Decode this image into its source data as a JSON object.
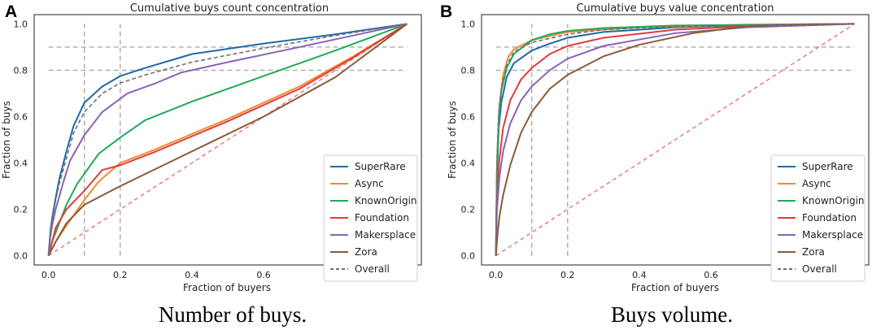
{
  "chart_data": [
    {
      "type": "line",
      "panel_letter": "A",
      "title": "Cumulative buys count concentration",
      "xlabel": "Fraction of buyers",
      "ylabel": "Fraction of buys",
      "caption": "Number of buys.",
      "xlim": [
        -0.04,
        1.04
      ],
      "ylim": [
        -0.04,
        1.04
      ],
      "xticks": [
        "0.0",
        "0.2",
        "0.4",
        "0.6",
        "0.8",
        "1.0"
      ],
      "yticks": [
        "0.0",
        "0.2",
        "0.4",
        "0.6",
        "0.8",
        "1.0"
      ],
      "grid": false,
      "legend_position": "lower-right",
      "reference_lines": {
        "vertical": [
          0.1,
          0.2
        ],
        "horizontal": [
          0.8,
          0.9
        ]
      },
      "series": [
        {
          "name": "SuperRare",
          "color": "#1f6aa5",
          "style": "solid",
          "points": [
            [
              0,
              0
            ],
            [
              0.005,
              0.1
            ],
            [
              0.01,
              0.16
            ],
            [
              0.02,
              0.25
            ],
            [
              0.03,
              0.33
            ],
            [
              0.05,
              0.45
            ],
            [
              0.07,
              0.56
            ],
            [
              0.1,
              0.66
            ],
            [
              0.15,
              0.73
            ],
            [
              0.2,
              0.775
            ],
            [
              0.27,
              0.81
            ],
            [
              0.4,
              0.87
            ],
            [
              0.6,
              0.915
            ],
            [
              0.8,
              0.955
            ],
            [
              1,
              1
            ]
          ]
        },
        {
          "name": "Async",
          "color": "#f28a2e",
          "style": "solid",
          "points": [
            [
              0,
              0
            ],
            [
              0.02,
              0.06
            ],
            [
              0.05,
              0.13
            ],
            [
              0.1,
              0.24
            ],
            [
              0.14,
              0.32
            ],
            [
              0.2,
              0.4
            ],
            [
              0.3,
              0.46
            ],
            [
              0.5,
              0.59
            ],
            [
              0.7,
              0.73
            ],
            [
              0.85,
              0.86
            ],
            [
              1,
              1
            ]
          ]
        },
        {
          "name": "KnownOrigin",
          "color": "#1faa5a",
          "style": "solid",
          "points": [
            [
              0,
              0
            ],
            [
              0.01,
              0.06
            ],
            [
              0.03,
              0.14
            ],
            [
              0.05,
              0.22
            ],
            [
              0.08,
              0.31
            ],
            [
              0.14,
              0.44
            ],
            [
              0.2,
              0.51
            ],
            [
              0.27,
              0.585
            ],
            [
              0.4,
              0.665
            ],
            [
              0.6,
              0.775
            ],
            [
              0.8,
              0.885
            ],
            [
              1,
              1
            ]
          ]
        },
        {
          "name": "Foundation",
          "color": "#e03b3b",
          "style": "solid",
          "points": [
            [
              0,
              0
            ],
            [
              0.02,
              0.12
            ],
            [
              0.05,
              0.2
            ],
            [
              0.1,
              0.28
            ],
            [
              0.15,
              0.37
            ],
            [
              0.2,
              0.39
            ],
            [
              0.3,
              0.45
            ],
            [
              0.5,
              0.58
            ],
            [
              0.7,
              0.72
            ],
            [
              0.85,
              0.855
            ],
            [
              1,
              1
            ]
          ]
        },
        {
          "name": "Makersplace",
          "color": "#8b62b8",
          "style": "solid",
          "points": [
            [
              0,
              0
            ],
            [
              0.005,
              0.08
            ],
            [
              0.01,
              0.13
            ],
            [
              0.02,
              0.2
            ],
            [
              0.04,
              0.31
            ],
            [
              0.06,
              0.41
            ],
            [
              0.1,
              0.52
            ],
            [
              0.15,
              0.62
            ],
            [
              0.22,
              0.7
            ],
            [
              0.3,
              0.745
            ],
            [
              0.37,
              0.79
            ],
            [
              0.5,
              0.835
            ],
            [
              0.7,
              0.9
            ],
            [
              0.85,
              0.95
            ],
            [
              1,
              1
            ]
          ]
        },
        {
          "name": "Zora",
          "color": "#8b5a38",
          "style": "solid",
          "points": [
            [
              0,
              0
            ],
            [
              0.02,
              0.06
            ],
            [
              0.05,
              0.14
            ],
            [
              0.1,
              0.22
            ],
            [
              0.2,
              0.3
            ],
            [
              0.4,
              0.45
            ],
            [
              0.6,
              0.6
            ],
            [
              0.8,
              0.77
            ],
            [
              1,
              1
            ]
          ]
        },
        {
          "name": "Overall",
          "color": "#707070",
          "style": "dashed",
          "points": [
            [
              0,
              0
            ],
            [
              0.005,
              0.09
            ],
            [
              0.01,
              0.15
            ],
            [
              0.02,
              0.24
            ],
            [
              0.03,
              0.31
            ],
            [
              0.05,
              0.42
            ],
            [
              0.07,
              0.53
            ],
            [
              0.1,
              0.62
            ],
            [
              0.15,
              0.7
            ],
            [
              0.2,
              0.745
            ],
            [
              0.27,
              0.78
            ],
            [
              0.4,
              0.835
            ],
            [
              0.6,
              0.895
            ],
            [
              0.8,
              0.95
            ],
            [
              1,
              1
            ]
          ]
        }
      ],
      "diagonal": {
        "color": "#f07070",
        "style": "dashed",
        "points": [
          [
            0,
            0
          ],
          [
            1,
            1
          ]
        ]
      }
    },
    {
      "type": "line",
      "panel_letter": "B",
      "title": "Cumulative buys value concentration",
      "xlabel": "Fraction of buyers",
      "ylabel": "Fraction of buys",
      "caption": "Buys volume.",
      "xlim": [
        -0.04,
        1.04
      ],
      "ylim": [
        -0.04,
        1.04
      ],
      "xticks": [
        "0.0",
        "0.2",
        "0.4",
        "0.6",
        "0.8",
        "1.0"
      ],
      "yticks": [
        "0.0",
        "0.2",
        "0.4",
        "0.6",
        "0.8",
        "1.0"
      ],
      "grid": false,
      "legend_position": "lower-right",
      "reference_lines": {
        "vertical": [
          0.1,
          0.2
        ],
        "horizontal": [
          0.8,
          0.9
        ]
      },
      "series": [
        {
          "name": "SuperRare",
          "color": "#1f6aa5",
          "style": "solid",
          "points": [
            [
              0,
              0
            ],
            [
              0.003,
              0.35
            ],
            [
              0.008,
              0.55
            ],
            [
              0.015,
              0.66
            ],
            [
              0.03,
              0.77
            ],
            [
              0.05,
              0.83
            ],
            [
              0.1,
              0.885
            ],
            [
              0.15,
              0.915
            ],
            [
              0.2,
              0.94
            ],
            [
              0.3,
              0.965
            ],
            [
              0.5,
              0.985
            ],
            [
              0.7,
              0.995
            ],
            [
              1,
              1
            ]
          ]
        },
        {
          "name": "Async",
          "color": "#f28a2e",
          "style": "solid",
          "points": [
            [
              0,
              0
            ],
            [
              0.003,
              0.4
            ],
            [
              0.01,
              0.65
            ],
            [
              0.02,
              0.78
            ],
            [
              0.035,
              0.86
            ],
            [
              0.05,
              0.89
            ],
            [
              0.1,
              0.93
            ],
            [
              0.2,
              0.965
            ],
            [
              0.4,
              0.985
            ],
            [
              0.7,
              0.997
            ],
            [
              1,
              1
            ]
          ]
        },
        {
          "name": "KnownOrigin",
          "color": "#1faa5a",
          "style": "solid",
          "points": [
            [
              0,
              0
            ],
            [
              0.003,
              0.38
            ],
            [
              0.008,
              0.6
            ],
            [
              0.015,
              0.71
            ],
            [
              0.03,
              0.81
            ],
            [
              0.05,
              0.87
            ],
            [
              0.1,
              0.93
            ],
            [
              0.15,
              0.955
            ],
            [
              0.2,
              0.97
            ],
            [
              0.3,
              0.982
            ],
            [
              0.5,
              0.993
            ],
            [
              1,
              1
            ]
          ]
        },
        {
          "name": "Foundation",
          "color": "#e03b3b",
          "style": "solid",
          "points": [
            [
              0,
              0
            ],
            [
              0.003,
              0.25
            ],
            [
              0.01,
              0.42
            ],
            [
              0.02,
              0.55
            ],
            [
              0.04,
              0.67
            ],
            [
              0.07,
              0.76
            ],
            [
              0.1,
              0.81
            ],
            [
              0.15,
              0.87
            ],
            [
              0.2,
              0.905
            ],
            [
              0.3,
              0.94
            ],
            [
              0.5,
              0.975
            ],
            [
              0.7,
              0.99
            ],
            [
              1,
              1
            ]
          ]
        },
        {
          "name": "Makersplace",
          "color": "#8b62b8",
          "style": "solid",
          "points": [
            [
              0,
              0
            ],
            [
              0.003,
              0.2
            ],
            [
              0.01,
              0.34
            ],
            [
              0.02,
              0.45
            ],
            [
              0.04,
              0.57
            ],
            [
              0.07,
              0.67
            ],
            [
              0.1,
              0.73
            ],
            [
              0.15,
              0.8
            ],
            [
              0.2,
              0.85
            ],
            [
              0.3,
              0.905
            ],
            [
              0.5,
              0.96
            ],
            [
              0.7,
              0.985
            ],
            [
              1,
              1
            ]
          ]
        },
        {
          "name": "Zora",
          "color": "#8b5a38",
          "style": "solid",
          "points": [
            [
              0,
              0
            ],
            [
              0.005,
              0.1
            ],
            [
              0.01,
              0.17
            ],
            [
              0.02,
              0.26
            ],
            [
              0.04,
              0.39
            ],
            [
              0.07,
              0.53
            ],
            [
              0.1,
              0.62
            ],
            [
              0.15,
              0.72
            ],
            [
              0.2,
              0.78
            ],
            [
              0.3,
              0.86
            ],
            [
              0.4,
              0.91
            ],
            [
              0.55,
              0.96
            ],
            [
              0.7,
              0.99
            ],
            [
              0.85,
              0.998
            ],
            [
              1,
              1
            ]
          ]
        },
        {
          "name": "Overall",
          "color": "#707070",
          "style": "dashed",
          "points": [
            [
              0,
              0
            ],
            [
              0.003,
              0.42
            ],
            [
              0.008,
              0.62
            ],
            [
              0.015,
              0.72
            ],
            [
              0.03,
              0.82
            ],
            [
              0.05,
              0.88
            ],
            [
              0.1,
              0.92
            ],
            [
              0.2,
              0.955
            ],
            [
              0.3,
              0.975
            ],
            [
              0.5,
              0.99
            ],
            [
              1,
              1
            ]
          ]
        }
      ],
      "diagonal": {
        "color": "#f07070",
        "style": "dashed",
        "points": [
          [
            0,
            0
          ],
          [
            1,
            1
          ]
        ]
      }
    }
  ]
}
